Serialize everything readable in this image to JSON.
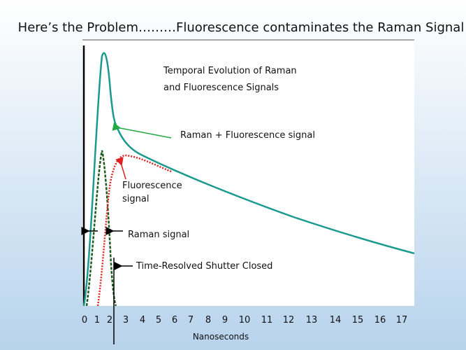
{
  "slide_title": "Here’s the Problem………Fluorescence contaminates the Raman Signal",
  "chart": {
    "title_lines": [
      "Temporal Evolution of Raman",
      "and Fluorescence Signals"
    ],
    "x_label": "Nanoseconds",
    "x_ticks": [
      "0",
      "1",
      "2",
      "3",
      "4",
      "5",
      "6",
      "7",
      "8",
      "9",
      "10",
      "11",
      "12",
      "13",
      "14",
      "15",
      "16",
      "17"
    ],
    "annotations": {
      "combined": "Raman + Fluorescence signal",
      "fluorescence": [
        "Fluorescence",
        "signal"
      ],
      "raman": "Raman signal",
      "shutter": "Time-Resolved Shutter Closed"
    }
  }
}
